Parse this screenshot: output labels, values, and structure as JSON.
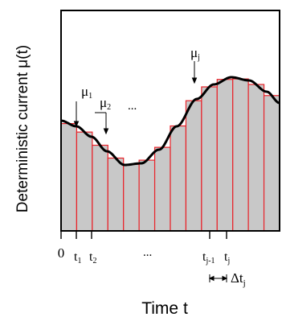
{
  "ylabel": "Deterministic current μ(t)",
  "xlabel": "Time t",
  "ticks": {
    "zero": "0",
    "t": "t",
    "sub_1": "1",
    "sub_2": "2",
    "sub_jm1": "j-1",
    "sub_j": "j",
    "ellipsis": "..."
  },
  "annotations": {
    "mu": "μ",
    "sub_1": "1",
    "sub_2": "2",
    "sub_j": "j",
    "ellipsis": "...",
    "delta_t": "Δt",
    "delta_sub": "j"
  },
  "colors": {
    "bar_fill": "#c8c8c8",
    "bar_edge": "#e8232a",
    "curve": "#000000",
    "frame": "#000000"
  }
}
